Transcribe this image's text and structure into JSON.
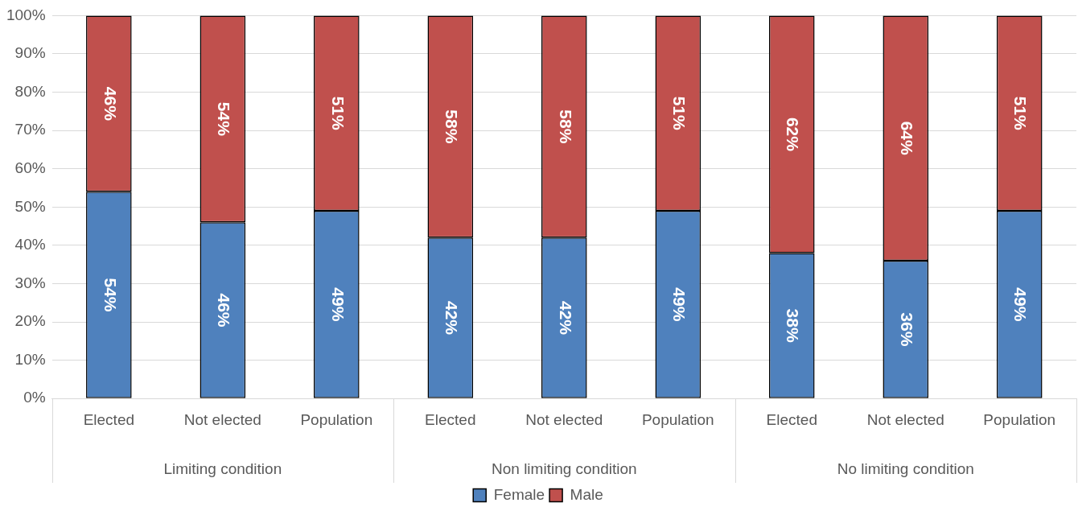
{
  "chart_data": {
    "type": "bar",
    "stacked": true,
    "grid": "y",
    "legend": "bottom",
    "categories": [
      "Elected",
      "Not elected",
      "Population",
      "Elected",
      "Not elected",
      "Population",
      "Elected",
      "Not elected",
      "Population"
    ],
    "series": [
      {
        "name": "Female",
        "color": "#4f81bd",
        "values": [
          54,
          46,
          49,
          42,
          42,
          49,
          38,
          36,
          49
        ],
        "value_labels": [
          "54%",
          "46%",
          "49%",
          "42%",
          "42%",
          "49%",
          "38%",
          "36%",
          "49%"
        ]
      },
      {
        "name": "Male",
        "color": "#c0504d",
        "values": [
          46,
          54,
          51,
          58,
          58,
          51,
          62,
          64,
          51
        ],
        "value_labels": [
          "46%",
          "54%",
          "51%",
          "58%",
          "58%",
          "51%",
          "62%",
          "64%",
          "51%"
        ]
      }
    ],
    "ylim": [
      0,
      100
    ],
    "yticks": [
      {
        "value": 0,
        "label": "0%"
      },
      {
        "value": 10,
        "label": "10%"
      },
      {
        "value": 20,
        "label": "20%"
      },
      {
        "value": 30,
        "label": "30%"
      },
      {
        "value": 40,
        "label": "40%"
      },
      {
        "value": 50,
        "label": "50%"
      },
      {
        "value": 60,
        "label": "60%"
      },
      {
        "value": 70,
        "label": "70%"
      },
      {
        "value": 80,
        "label": "80%"
      },
      {
        "value": 90,
        "label": "90%"
      },
      {
        "value": 100,
        "label": "100%"
      }
    ],
    "annotations": [
      "Limiting condition",
      "Non limiting condition",
      "No limiting condition"
    ]
  }
}
